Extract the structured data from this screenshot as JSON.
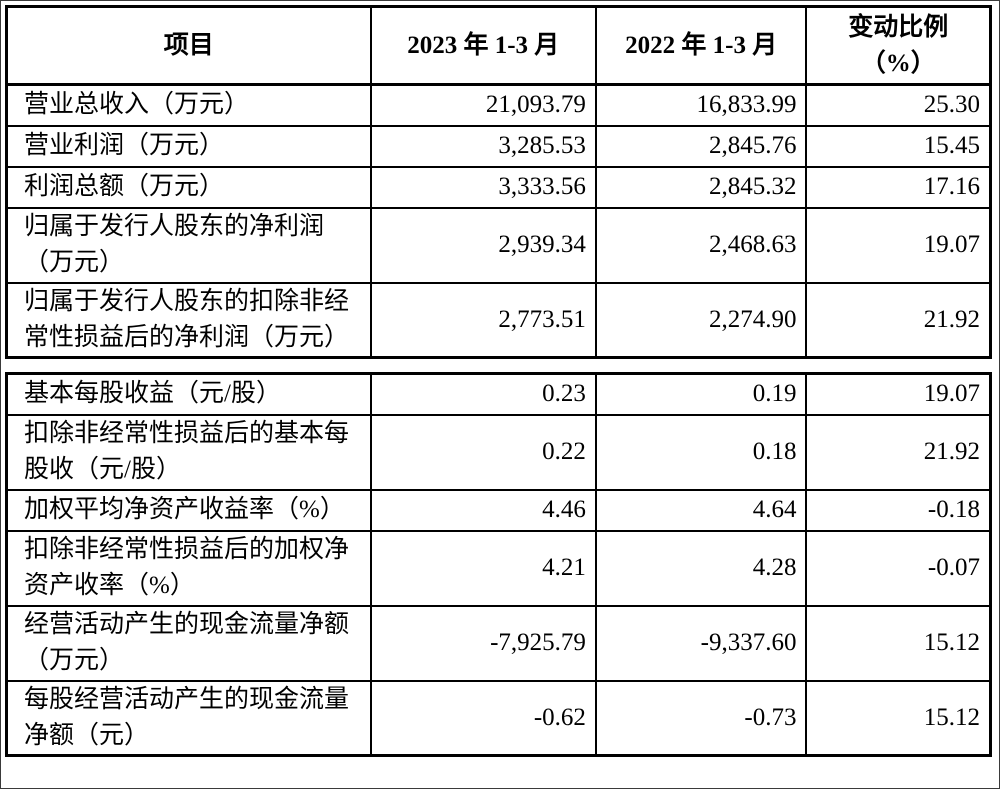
{
  "doc": {
    "background": "#ffffff",
    "border_color": "#000000",
    "language": "zh-CN",
    "content_type": "financial-results-table"
  },
  "t1": {
    "headers": {
      "item": "项目",
      "period_2023": "2023 年 1-3 月",
      "period_2022": "2022 年 1-3 月",
      "change": "变动比例\n（%）"
    },
    "rows": [
      {
        "label": "营业总收入（万元）",
        "y2023": "21,093.79",
        "y2022": "16,833.99",
        "chg": "25.30"
      },
      {
        "label": "营业利润（万元）",
        "y2023": "3,285.53",
        "y2022": "2,845.76",
        "chg": "15.45"
      },
      {
        "label": "利润总额（万元）",
        "y2023": "3,333.56",
        "y2022": "2,845.32",
        "chg": "17.16"
      },
      {
        "label": "归属于发行人股东的净利润\n（万元）",
        "y2023": "2,939.34",
        "y2022": "2,468.63",
        "chg": "19.07"
      },
      {
        "label": "归属于发行人股东的扣除非经\n常性损益后的净利润（万元）",
        "y2023": "2,773.51",
        "y2022": "2,274.90",
        "chg": "21.92"
      }
    ]
  },
  "t2": {
    "rows": [
      {
        "label": "基本每股收益（元/股）",
        "y2023": "0.23",
        "y2022": "0.19",
        "chg": "19.07"
      },
      {
        "label": "扣除非经常性损益后的基本每\n股收（元/股）",
        "y2023": "0.22",
        "y2022": "0.18",
        "chg": "21.92"
      },
      {
        "label": "加权平均净资产收益率（%）",
        "y2023": "4.46",
        "y2022": "4.64",
        "chg": "-0.18"
      },
      {
        "label": "扣除非经常性损益后的加权净\n资产收率（%）",
        "y2023": "4.21",
        "y2022": "4.28",
        "chg": "-0.07"
      },
      {
        "label": "经营活动产生的现金流量净额\n（万元）",
        "y2023": "-7,925.79",
        "y2022": "-9,337.60",
        "chg": "15.12"
      },
      {
        "label": "每股经营活动产生的现金流量\n净额（元）",
        "y2023": "-0.62",
        "y2022": "-0.73",
        "chg": "15.12"
      }
    ]
  }
}
